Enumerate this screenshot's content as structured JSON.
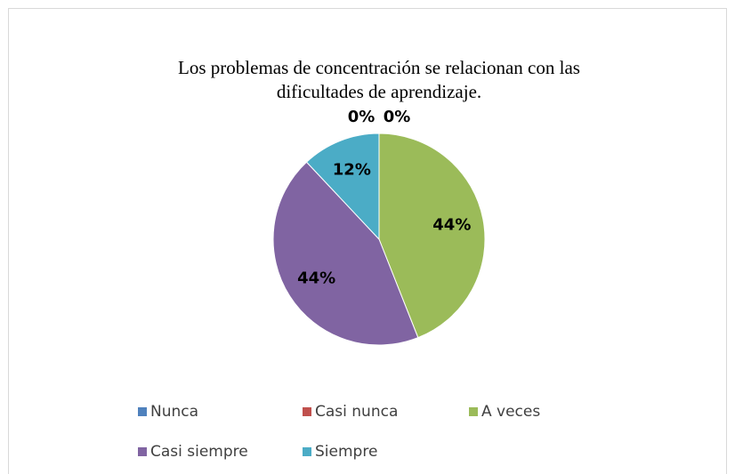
{
  "chart_data": {
    "type": "pie",
    "title": [
      "Los problemas de concentración se relacionan con las",
      "dificultades de aprendizaje."
    ],
    "categories": [
      "Nunca",
      "Casi nunca",
      "A veces",
      "Casi siempre",
      "Siempre"
    ],
    "values": [
      0,
      0,
      44,
      44,
      12
    ],
    "value_labels": [
      "0%",
      "0%",
      "44%",
      "44%",
      "12%"
    ],
    "colors": [
      "#4f81bd",
      "#c0504d",
      "#9bbb59",
      "#8064a2",
      "#4bacc6"
    ],
    "legend": "bottom"
  }
}
